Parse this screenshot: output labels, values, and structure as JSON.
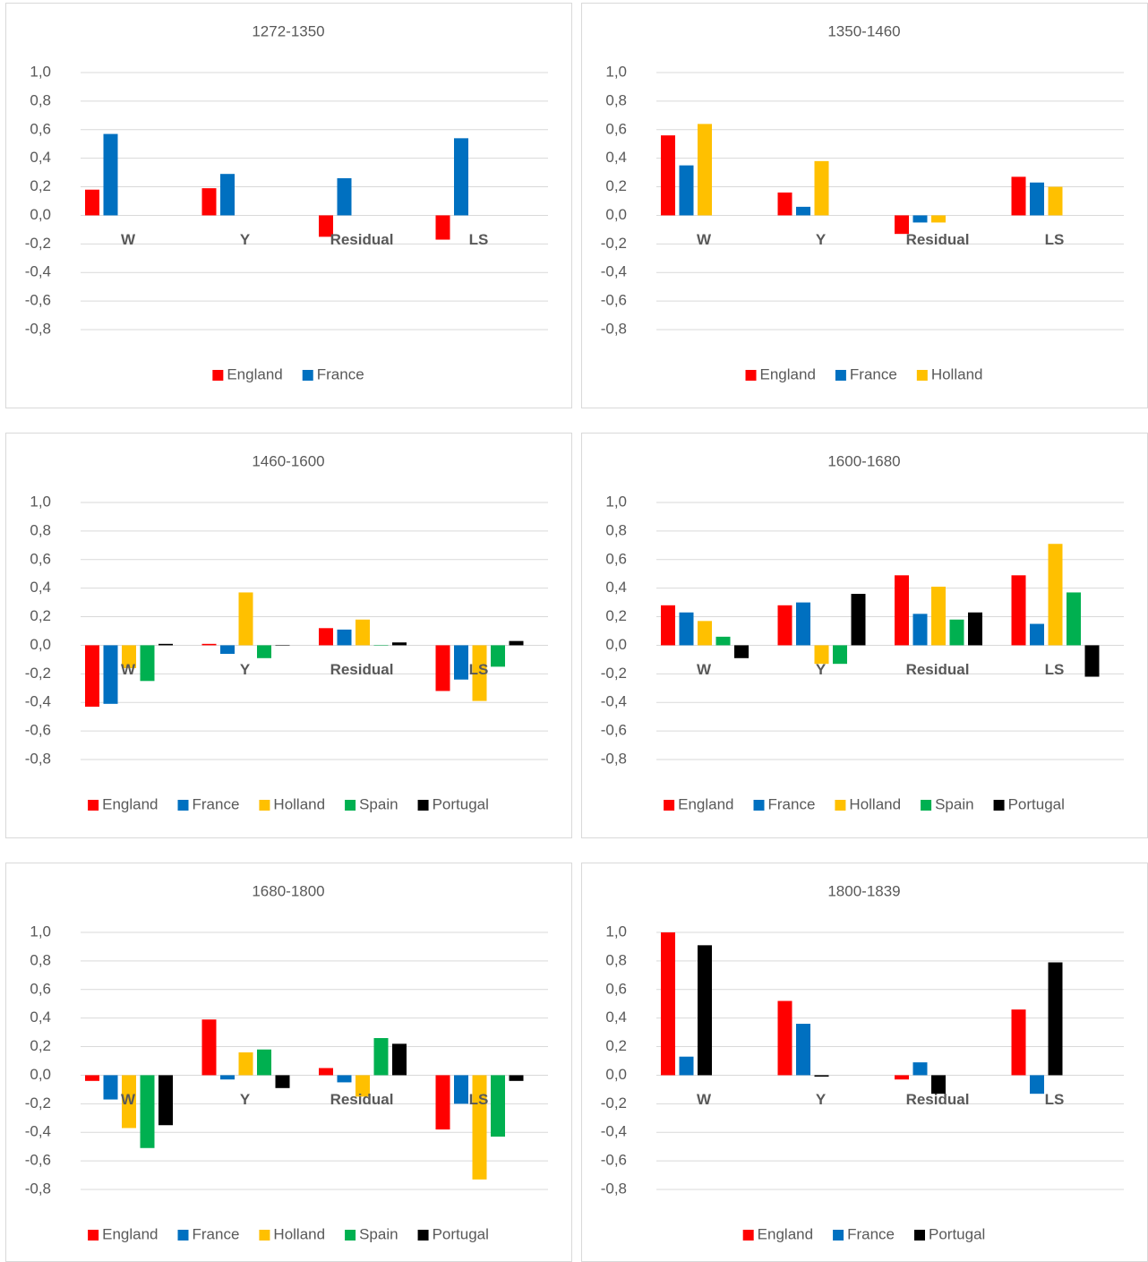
{
  "chart_data": [
    {
      "type": "bar",
      "title": "1272-1350",
      "categories": [
        "W",
        "Y",
        "Residual",
        "LS"
      ],
      "series": [
        {
          "name": "England",
          "color": "#ff0000",
          "values": [
            0.18,
            0.19,
            -0.15,
            -0.17
          ]
        },
        {
          "name": "France",
          "color": "#0070c0",
          "values": [
            0.57,
            0.29,
            0.26,
            0.54
          ]
        }
      ],
      "ylim": [
        -0.8,
        1.0
      ],
      "yticks": [
        {
          "value": 1.0,
          "label": "1,0"
        },
        {
          "value": 0.8,
          "label": "0,8"
        },
        {
          "value": 0.6,
          "label": "0,6"
        },
        {
          "value": 0.4,
          "label": "0,4"
        },
        {
          "value": 0.2,
          "label": "0,2"
        },
        {
          "value": 0,
          "label": "0,0"
        },
        {
          "value": -0.2,
          "label": "-0,2"
        },
        {
          "value": -0.4,
          "label": "-0,4"
        },
        {
          "value": -0.6,
          "label": "-0,6"
        },
        {
          "value": -0.8,
          "label": "-0,8"
        }
      ],
      "grid": true,
      "legend": "bottom"
    },
    {
      "type": "bar",
      "title": "1350-1460",
      "categories": [
        "W",
        "Y",
        "Residual",
        "LS"
      ],
      "series": [
        {
          "name": "England",
          "color": "#ff0000",
          "values": [
            0.56,
            0.16,
            -0.13,
            0.27
          ]
        },
        {
          "name": "France",
          "color": "#0070c0",
          "values": [
            0.35,
            0.06,
            -0.05,
            0.23
          ]
        },
        {
          "name": "Holland",
          "color": "#ffc000",
          "values": [
            0.64,
            0.38,
            -0.05,
            0.2
          ]
        }
      ],
      "ylim": [
        -0.8,
        1.0
      ],
      "yticks": [
        {
          "value": 1.0,
          "label": "1,0"
        },
        {
          "value": 0.8,
          "label": "0,8"
        },
        {
          "value": 0.6,
          "label": "0,6"
        },
        {
          "value": 0.4,
          "label": "0,4"
        },
        {
          "value": 0.2,
          "label": "0,2"
        },
        {
          "value": 0,
          "label": "0,0"
        },
        {
          "value": -0.2,
          "label": "-0,2"
        },
        {
          "value": -0.4,
          "label": "-0,4"
        },
        {
          "value": -0.6,
          "label": "-0,6"
        },
        {
          "value": -0.8,
          "label": "-0,8"
        }
      ],
      "grid": true,
      "legend": "bottom"
    },
    {
      "type": "bar",
      "title": "1460-1600",
      "categories": [
        "W",
        "Y",
        "Residual",
        "LS"
      ],
      "series": [
        {
          "name": "England",
          "color": "#ff0000",
          "values": [
            -0.43,
            0.01,
            0.12,
            -0.32
          ]
        },
        {
          "name": "France",
          "color": "#0070c0",
          "values": [
            -0.41,
            -0.06,
            0.11,
            -0.24
          ]
        },
        {
          "name": "Holland",
          "color": "#ffc000",
          "values": [
            -0.16,
            0.37,
            0.18,
            -0.39
          ]
        },
        {
          "name": "Spain",
          "color": "#00b050",
          "values": [
            -0.25,
            -0.09,
            0.0,
            -0.15
          ]
        },
        {
          "name": "Portugal",
          "color": "#000000",
          "values": [
            0.01,
            0.0,
            0.02,
            0.03
          ]
        }
      ],
      "ylim": [
        -0.8,
        1.0
      ],
      "yticks": [
        {
          "value": 1.0,
          "label": "1,0"
        },
        {
          "value": 0.8,
          "label": "0,8"
        },
        {
          "value": 0.6,
          "label": "0,6"
        },
        {
          "value": 0.4,
          "label": "0,4"
        },
        {
          "value": 0.2,
          "label": "0,2"
        },
        {
          "value": 0,
          "label": "0,0"
        },
        {
          "value": -0.2,
          "label": "-0,2"
        },
        {
          "value": -0.4,
          "label": "-0,4"
        },
        {
          "value": -0.6,
          "label": "-0,6"
        },
        {
          "value": -0.8,
          "label": "-0,8"
        }
      ],
      "grid": true,
      "legend": "bottom"
    },
    {
      "type": "bar",
      "title": "1600-1680",
      "categories": [
        "W",
        "Y",
        "Residual",
        "LS"
      ],
      "series": [
        {
          "name": "England",
          "color": "#ff0000",
          "values": [
            0.28,
            0.28,
            0.49,
            0.49
          ]
        },
        {
          "name": "France",
          "color": "#0070c0",
          "values": [
            0.23,
            0.3,
            0.22,
            0.15
          ]
        },
        {
          "name": "Holland",
          "color": "#ffc000",
          "values": [
            0.17,
            -0.13,
            0.41,
            0.71
          ]
        },
        {
          "name": "Spain",
          "color": "#00b050",
          "values": [
            0.06,
            -0.13,
            0.18,
            0.37
          ]
        },
        {
          "name": "Portugal",
          "color": "#000000",
          "values": [
            -0.09,
            0.36,
            0.23,
            -0.22
          ]
        }
      ],
      "ylim": [
        -0.8,
        1.0
      ],
      "yticks": [
        {
          "value": 1.0,
          "label": "1,0"
        },
        {
          "value": 0.8,
          "label": "0,8"
        },
        {
          "value": 0.6,
          "label": "0,6"
        },
        {
          "value": 0.4,
          "label": "0,4"
        },
        {
          "value": 0.2,
          "label": "0,2"
        },
        {
          "value": 0,
          "label": "0,0"
        },
        {
          "value": -0.2,
          "label": "-0,2"
        },
        {
          "value": -0.4,
          "label": "-0,4"
        },
        {
          "value": -0.6,
          "label": "-0,6"
        },
        {
          "value": -0.8,
          "label": "-0,8"
        }
      ],
      "grid": true,
      "legend": "bottom"
    },
    {
      "type": "bar",
      "title": "1680-1800",
      "categories": [
        "W",
        "Y",
        "Residual",
        "LS"
      ],
      "series": [
        {
          "name": "England",
          "color": "#ff0000",
          "values": [
            -0.04,
            0.39,
            0.05,
            -0.38
          ]
        },
        {
          "name": "France",
          "color": "#0070c0",
          "values": [
            -0.17,
            -0.03,
            -0.05,
            -0.2
          ]
        },
        {
          "name": "Holland",
          "color": "#ffc000",
          "values": [
            -0.37,
            0.16,
            -0.15,
            -0.73
          ]
        },
        {
          "name": "Spain",
          "color": "#00b050",
          "values": [
            -0.51,
            0.18,
            0.26,
            -0.43
          ]
        },
        {
          "name": "Portugal",
          "color": "#000000",
          "values": [
            -0.35,
            -0.09,
            0.22,
            -0.04
          ]
        }
      ],
      "ylim": [
        -0.8,
        1.0
      ],
      "yticks": [
        {
          "value": 1.0,
          "label": "1,0"
        },
        {
          "value": 0.8,
          "label": "0,8"
        },
        {
          "value": 0.6,
          "label": "0,6"
        },
        {
          "value": 0.4,
          "label": "0,4"
        },
        {
          "value": 0.2,
          "label": "0,2"
        },
        {
          "value": 0,
          "label": "0,0"
        },
        {
          "value": -0.2,
          "label": "-0,2"
        },
        {
          "value": -0.4,
          "label": "-0,4"
        },
        {
          "value": -0.6,
          "label": "-0,6"
        },
        {
          "value": -0.8,
          "label": "-0,8"
        }
      ],
      "grid": true,
      "legend": "bottom"
    },
    {
      "type": "bar",
      "title": "1800-1839",
      "categories": [
        "W",
        "Y",
        "Residual",
        "LS"
      ],
      "series": [
        {
          "name": "England",
          "color": "#ff0000",
          "values": [
            1.0,
            0.52,
            -0.03,
            0.46
          ]
        },
        {
          "name": "France",
          "color": "#0070c0",
          "values": [
            0.13,
            0.36,
            0.09,
            -0.13
          ]
        },
        {
          "name": "Portugal",
          "color": "#000000",
          "values": [
            0.91,
            -0.01,
            -0.13,
            0.79
          ]
        }
      ],
      "ylim": [
        -0.8,
        1.0
      ],
      "yticks": [
        {
          "value": 1.0,
          "label": "1,0"
        },
        {
          "value": 0.8,
          "label": "0,8"
        },
        {
          "value": 0.6,
          "label": "0,6"
        },
        {
          "value": 0.4,
          "label": "0,4"
        },
        {
          "value": 0.2,
          "label": "0,2"
        },
        {
          "value": 0,
          "label": "0,0"
        },
        {
          "value": -0.2,
          "label": "-0,2"
        },
        {
          "value": -0.4,
          "label": "-0,4"
        },
        {
          "value": -0.6,
          "label": "-0,6"
        },
        {
          "value": -0.8,
          "label": "-0,8"
        }
      ],
      "grid": true,
      "legend": "bottom"
    }
  ]
}
